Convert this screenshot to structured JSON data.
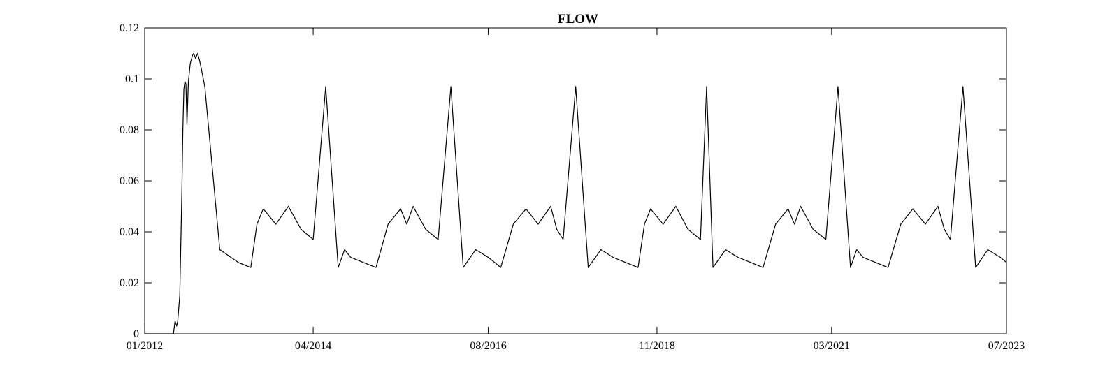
{
  "chart_data": {
    "type": "line",
    "title": "FLOW",
    "xlabel": "",
    "ylabel": "",
    "xlim": [
      "2012-01-01",
      "2023-07-01"
    ],
    "ylim": [
      0,
      0.12
    ],
    "x_ticks": [
      "01/2012",
      "04/2014",
      "08/2016",
      "11/2018",
      "03/2021",
      "07/2023"
    ],
    "y_ticks": [
      "0",
      "0.02",
      "0.04",
      "0.06",
      "0.08",
      "0.1",
      "0.12"
    ],
    "grid": false,
    "legend": "none",
    "line_color": "#000000",
    "series": [
      {
        "x": [
          "2012-01-01",
          "2012-01-03",
          "2012-01-10",
          "2012-02-01",
          "2012-03-01",
          "2012-04-01",
          "2012-05-01",
          "2012-05-20",
          "2012-05-28",
          "2012-06-05",
          "2012-06-10",
          "2012-06-20",
          "2012-06-30",
          "2012-07-05",
          "2012-07-10",
          "2012-07-15",
          "2012-07-20",
          "2012-07-25",
          "2012-08-01",
          "2012-08-10",
          "2012-08-20",
          "2012-08-26",
          "2012-09-01",
          "2012-09-05",
          "2012-09-10",
          "2012-09-15",
          "2012-09-22",
          "2012-09-28",
          "2012-10-03",
          "2012-10-08",
          "2012-10-15",
          "2012-10-20",
          "2013-01-01",
          "2013-04-01",
          "2013-05-01",
          "2013-06-01",
          "2013-07-01",
          "2013-08-01",
          "2013-10-01",
          "2013-12-01",
          "2014-02-01",
          "2014-04-01",
          "2014-06-01",
          "2014-08-01",
          "2014-09-01",
          "2014-10-01",
          "2014-12-01",
          "2015-02-01",
          "2015-04-01",
          "2015-06-01",
          "2015-07-01",
          "2015-08-01",
          "2015-10-01",
          "2015-12-01",
          "2016-02-01",
          "2016-04-01",
          "2016-06-01",
          "2016-08-01",
          "2016-09-01",
          "2016-10-01",
          "2016-12-01",
          "2017-02-01",
          "2017-04-01",
          "2017-06-01",
          "2017-07-01",
          "2017-08-01",
          "2017-10-01",
          "2017-12-01",
          "2018-02-01",
          "2018-04-01",
          "2018-06-01",
          "2018-08-01",
          "2018-09-01",
          "2018-10-01",
          "2018-12-01",
          "2019-02-01",
          "2019-04-01",
          "2019-06-01",
          "2019-07-01",
          "2019-08-01",
          "2019-10-01",
          "2019-12-01",
          "2020-02-01",
          "2020-04-01",
          "2020-06-01",
          "2020-08-01",
          "2020-09-01",
          "2020-10-01",
          "2020-12-01",
          "2021-02-01",
          "2021-04-01",
          "2021-06-01",
          "2021-07-01",
          "2021-08-01",
          "2021-10-01",
          "2021-12-01",
          "2022-02-01",
          "2022-04-01",
          "2022-06-01",
          "2022-08-01",
          "2022-09-01",
          "2022-10-01",
          "2022-12-01",
          "2023-02-01",
          "2023-04-01",
          "2023-06-01",
          "2023-07-01"
        ],
        "values": [
          0.004,
          0.0,
          0.0,
          0.0,
          0.0,
          0.0,
          0.0,
          0.0,
          0.005,
          0.003,
          0.005,
          0.015,
          0.055,
          0.08,
          0.096,
          0.099,
          0.098,
          0.082,
          0.099,
          0.106,
          0.109,
          0.11,
          0.109,
          0.108,
          0.109,
          0.11,
          0.108,
          0.106,
          0.104,
          0.102,
          0.099,
          0.097,
          0.033,
          0.028,
          0.027,
          0.026,
          0.043,
          0.049,
          0.043,
          0.05,
          0.041,
          0.037,
          0.097,
          0.026,
          0.033,
          0.03,
          0.028,
          0.026,
          0.043,
          0.049,
          0.043,
          0.05,
          0.041,
          0.037,
          0.097,
          0.026,
          0.033,
          0.03,
          0.028,
          0.026,
          0.043,
          0.049,
          0.043,
          0.05,
          0.041,
          0.037,
          0.097,
          0.026,
          0.033,
          0.03,
          0.028,
          0.026,
          0.043,
          0.049,
          0.043,
          0.05,
          0.041,
          0.037,
          0.097,
          0.026,
          0.033,
          0.03,
          0.028,
          0.026,
          0.043,
          0.049,
          0.043,
          0.05,
          0.041,
          0.037,
          0.097,
          0.026,
          0.033,
          0.03,
          0.028,
          0.026,
          0.043,
          0.049,
          0.043,
          0.05,
          0.041,
          0.037,
          0.097,
          0.026,
          0.033,
          0.03,
          0.028
        ]
      }
    ]
  }
}
